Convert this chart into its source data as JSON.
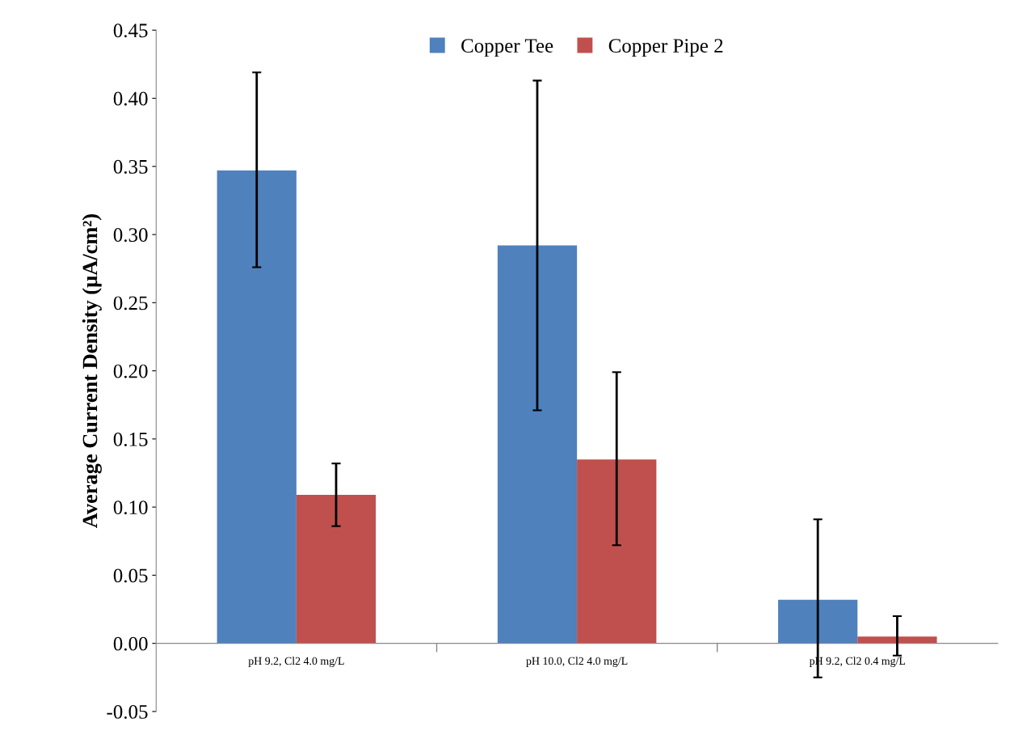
{
  "chart_data": {
    "type": "bar",
    "ylabel": "Average Current Density (µA/cm²)",
    "categories": [
      "pH 9.2, Cl2 4.0 mg/L",
      "pH 10.0, Cl2 4.0 mg/L",
      "pH 9.2, Cl2 0.4 mg/L"
    ],
    "series": [
      {
        "name": "Copper Tee",
        "color": "#4f81bd",
        "values": [
          0.347,
          0.292,
          0.032
        ],
        "errors": [
          [
            0.276,
            0.419
          ],
          [
            0.171,
            0.413
          ],
          [
            -0.025,
            0.091
          ]
        ]
      },
      {
        "name": "Copper Pipe 2",
        "color": "#c0504d",
        "values": [
          0.109,
          0.135,
          0.005
        ],
        "errors": [
          [
            0.086,
            0.132
          ],
          [
            0.072,
            0.199
          ],
          [
            -0.009,
            0.02
          ]
        ]
      }
    ],
    "ylim": [
      -0.05,
      0.45
    ],
    "yticks": [
      {
        "value": -0.05,
        "label": "-0.05"
      },
      {
        "value": 0,
        "label": "0.00"
      },
      {
        "value": 0.05,
        "label": "0.05"
      },
      {
        "value": 0.1,
        "label": "0.10"
      },
      {
        "value": 0.15,
        "label": "0.15"
      },
      {
        "value": 0.2,
        "label": "0.20"
      },
      {
        "value": 0.25,
        "label": "0.25"
      },
      {
        "value": 0.3,
        "label": "0.30"
      },
      {
        "value": 0.35,
        "label": "0.35"
      },
      {
        "value": 0.4,
        "label": "0.40"
      },
      {
        "value": 0.45,
        "label": "0.45"
      }
    ],
    "grid": false,
    "legend": "top"
  }
}
